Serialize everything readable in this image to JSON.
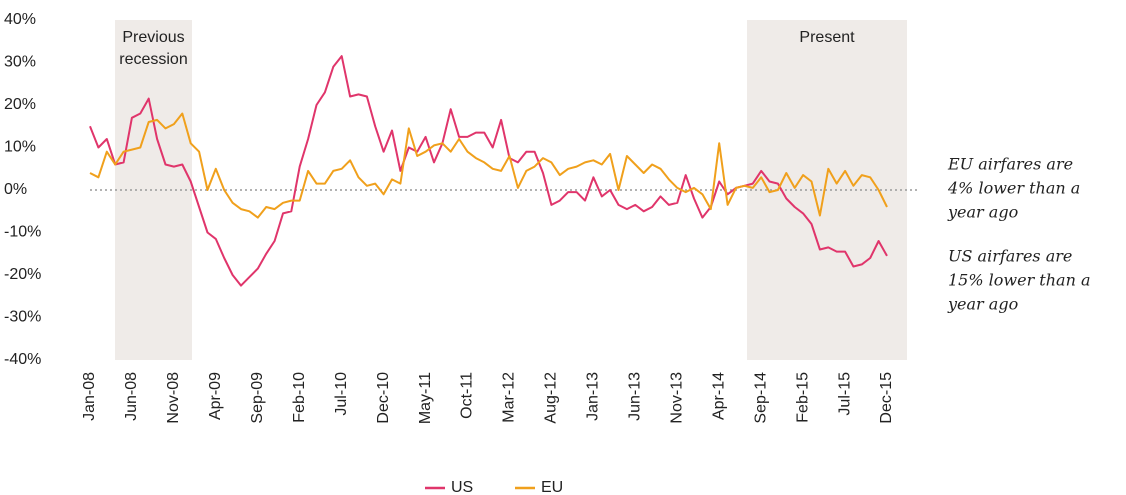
{
  "chart_data": {
    "type": "line",
    "categories": [
      "Jan-08",
      null,
      null,
      null,
      null,
      "Jun-08",
      null,
      null,
      null,
      null,
      "Nov-08",
      null,
      null,
      null,
      null,
      "Apr-09",
      null,
      null,
      null,
      null,
      "Sep-09",
      null,
      null,
      null,
      null,
      "Feb-10",
      null,
      null,
      null,
      null,
      "Jul-10",
      null,
      null,
      null,
      null,
      "Dec-10",
      null,
      null,
      null,
      null,
      "May-11",
      null,
      null,
      null,
      null,
      "Oct-11",
      null,
      null,
      null,
      null,
      "Mar-12",
      null,
      null,
      null,
      null,
      "Aug-12",
      null,
      null,
      null,
      null,
      "Jan-13",
      null,
      null,
      null,
      null,
      "Jun-13",
      null,
      null,
      null,
      null,
      "Nov-13",
      null,
      null,
      null,
      null,
      "Apr-14",
      null,
      null,
      null,
      null,
      "Sep-14",
      null,
      null,
      null,
      null,
      "Feb-15",
      null,
      null,
      null,
      null,
      "Jul-15",
      null,
      null,
      null,
      null,
      "Dec-15"
    ],
    "series": [
      {
        "name": "US",
        "color": "#e0356b",
        "values": [
          15,
          10,
          12,
          6,
          6.5,
          17,
          18,
          21.5,
          12,
          6,
          5.5,
          6,
          2,
          -4,
          -10,
          -11.5,
          -16,
          -20,
          -22.5,
          -20.5,
          -18.5,
          -15,
          -12,
          -5.5,
          -5,
          5.5,
          12,
          20,
          23,
          29,
          31.5,
          22,
          22.5,
          22,
          15,
          9,
          14,
          4.5,
          10,
          9,
          12.5,
          6.5,
          11,
          19,
          12.5,
          12.5,
          13.5,
          13.5,
          10,
          16.5,
          7.5,
          6.5,
          9,
          9,
          4,
          -3.5,
          -2.5,
          -0.5,
          -0.5,
          -2.5,
          3,
          -1.5,
          0,
          -3.5,
          -4.5,
          -3.5,
          -5,
          -4,
          -1.5,
          -3.5,
          -3,
          3.5,
          -2,
          -6.5,
          -4,
          2,
          -1,
          0.5,
          1,
          1.5,
          4.5,
          2,
          1.5,
          -2,
          -4,
          -5.5,
          -8,
          -14,
          -13.5,
          -14.5,
          -14.5,
          -18,
          -17.5,
          -16,
          -12,
          -15.5
        ]
      },
      {
        "name": "EU",
        "color": "#f0a01c",
        "values": [
          4,
          3,
          9,
          6,
          9,
          9.5,
          10,
          16,
          16.5,
          14.5,
          15.5,
          18,
          11,
          9,
          0,
          5,
          0,
          -3,
          -4.5,
          -5,
          -6.5,
          -4,
          -4.5,
          -3,
          -2.5,
          -2.5,
          4.5,
          1.5,
          1.5,
          4.5,
          5,
          7,
          3,
          1,
          1.5,
          -1,
          2.5,
          1.5,
          14.5,
          8,
          9,
          10.5,
          11,
          9,
          12,
          9,
          7.5,
          6.5,
          5,
          4.5,
          8,
          0.5,
          4.5,
          5.5,
          7.5,
          6.5,
          3.5,
          5,
          5.5,
          6.5,
          7,
          6,
          8.5,
          0,
          8,
          6,
          4,
          6,
          5,
          2.5,
          0.5,
          -0.5,
          0.5,
          -1,
          -4.5,
          11,
          -3.5,
          0.5,
          1,
          0.5,
          3,
          -0.5,
          0,
          4,
          0.5,
          3.5,
          2,
          -6,
          5,
          1.5,
          4.5,
          1,
          3.5,
          3,
          0,
          -4
        ]
      }
    ],
    "ylim": [
      -40,
      40
    ],
    "yticks": [
      {
        "value": -40,
        "label": "-40%"
      },
      {
        "value": -30,
        "label": "-30%"
      },
      {
        "value": -20,
        "label": "-20%"
      },
      {
        "value": -10,
        "label": "-10%"
      },
      {
        "value": 0,
        "label": "0%"
      },
      {
        "value": 10,
        "label": "10%"
      },
      {
        "value": 20,
        "label": "20%"
      },
      {
        "value": 30,
        "label": "30%"
      },
      {
        "value": 40,
        "label": "40%"
      }
    ],
    "shaded_regions": [
      {
        "label": [
          "Previous",
          "recession"
        ]
      },
      {
        "label": [
          "Present"
        ]
      }
    ],
    "annotations": [
      [
        "EU airfares are",
        "4% lower than a",
        "year ago"
      ],
      [
        "US airfares are",
        "15% lower than a",
        "year ago"
      ]
    ],
    "legend": "bottom"
  }
}
